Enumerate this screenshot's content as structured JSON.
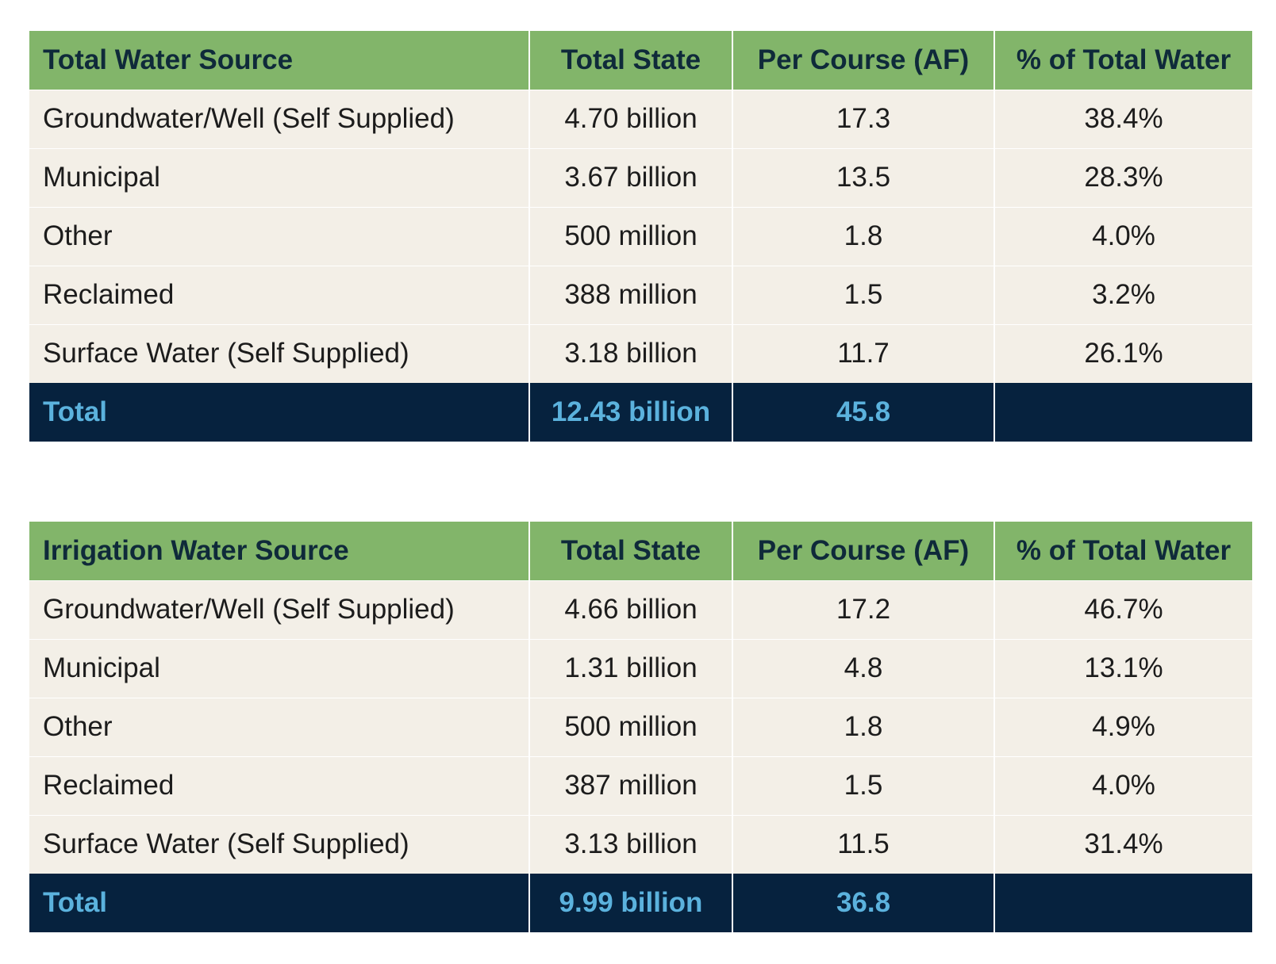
{
  "tables": [
    {
      "headers": [
        "Total Water Source",
        "Total State",
        "Per Course (AF)",
        "% of Total Water"
      ],
      "rows": [
        [
          "Groundwater/Well (Self Supplied)",
          "4.70 billion",
          "17.3",
          "38.4%"
        ],
        [
          "Municipal",
          "3.67 billion",
          "13.5",
          "28.3%"
        ],
        [
          "Other",
          "500 million",
          "1.8",
          "4.0%"
        ],
        [
          "Reclaimed",
          "388 million",
          "1.5",
          "3.2%"
        ],
        [
          "Surface Water (Self Supplied)",
          "3.18 billion",
          "11.7",
          "26.1%"
        ]
      ],
      "total": [
        "Total",
        "12.43 billion",
        "45.8",
        ""
      ]
    },
    {
      "headers": [
        "Irrigation Water Source",
        "Total State",
        "Per Course (AF)",
        "% of Total Water"
      ],
      "rows": [
        [
          "Groundwater/Well (Self Supplied)",
          "4.66 billion",
          "17.2",
          "46.7%"
        ],
        [
          "Municipal",
          "1.31 billion",
          "4.8",
          "13.1%"
        ],
        [
          "Other",
          "500 million",
          "1.8",
          "4.9%"
        ],
        [
          "Reclaimed",
          "387 million",
          "1.5",
          "4.0%"
        ],
        [
          "Surface Water (Self Supplied)",
          "3.13 billion",
          "11.5",
          "31.4%"
        ]
      ],
      "total": [
        "Total",
        "9.99 billion",
        "36.8",
        ""
      ]
    }
  ],
  "colors": {
    "header_bg": "#82b56a",
    "header_text": "#0f2a3a",
    "row_bg": "#f3efe7",
    "total_bg": "#06223e",
    "total_text": "#5bb2dd"
  }
}
